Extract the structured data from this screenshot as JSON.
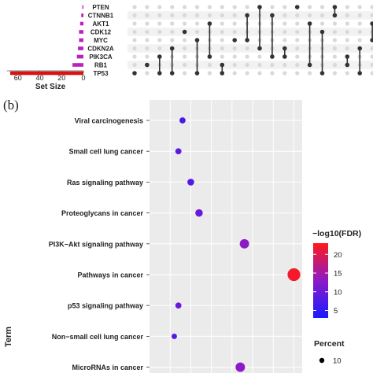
{
  "panel_label": "(b)",
  "chart_data": [
    {
      "type": "upset",
      "sets": [
        "PTEN",
        "CTNNB1",
        "AKT1",
        "CDK12",
        "MYC",
        "CDKN2A",
        "PIK3CA",
        "RB1",
        "TP53"
      ],
      "set_sizes": [
        1,
        2,
        3,
        4,
        4,
        5,
        6,
        10,
        67
      ],
      "set_size_label": "Set Size",
      "set_size_ticks": [
        60,
        40,
        20,
        0
      ],
      "set_size_xlim": [
        0,
        70
      ],
      "bar_colors": {
        "default": "#bb22bb",
        "large": "#dd1111"
      },
      "intersections": [
        [
          8
        ],
        [
          7
        ],
        [
          6,
          8
        ],
        [
          5,
          8
        ],
        [
          3
        ],
        [
          4,
          8
        ],
        [
          2,
          6
        ],
        [
          7,
          8
        ],
        [
          4
        ],
        [
          1,
          4
        ],
        [
          0,
          5
        ],
        [
          1,
          6
        ],
        [
          5,
          6
        ],
        [
          0
        ],
        [
          2,
          7
        ],
        [
          3,
          8
        ],
        [
          0,
          1
        ],
        [
          6,
          7
        ],
        [
          5,
          8
        ],
        [
          2,
          4
        ]
      ]
    },
    {
      "type": "dotplot",
      "terms": [
        "Viral carcinogenesis",
        "Small cell lung cancer",
        "Ras signaling pathway",
        "Proteoglycans in cancer",
        "PI3K−Akt signaling pathway",
        "Pathways in cancer",
        "p53 signaling pathway",
        "Non−small cell lung cancer",
        "MicroRNAs in cancer"
      ],
      "x_values": [
        0.13,
        0.12,
        0.15,
        0.17,
        0.28,
        0.4,
        0.12,
        0.11,
        0.27
      ],
      "neg_log10_fdr": [
        7,
        9,
        8,
        10,
        13,
        22,
        10,
        8,
        13
      ],
      "percent": [
        4,
        4,
        5,
        6,
        9,
        14,
        4,
        3,
        9
      ],
      "xlim": [
        0.05,
        0.42
      ],
      "ylabel": "Term",
      "legend": {
        "color_title": "−log10(FDR)",
        "color_ticks": [
          20,
          15,
          10,
          5
        ],
        "color_range": [
          3,
          23
        ],
        "color_low": "#1a1aff",
        "color_high": "#ff1a1a",
        "size_title": "Percent",
        "size_ticks": [
          10
        ]
      },
      "grid": true,
      "panel_background": "#ebebeb"
    }
  ]
}
